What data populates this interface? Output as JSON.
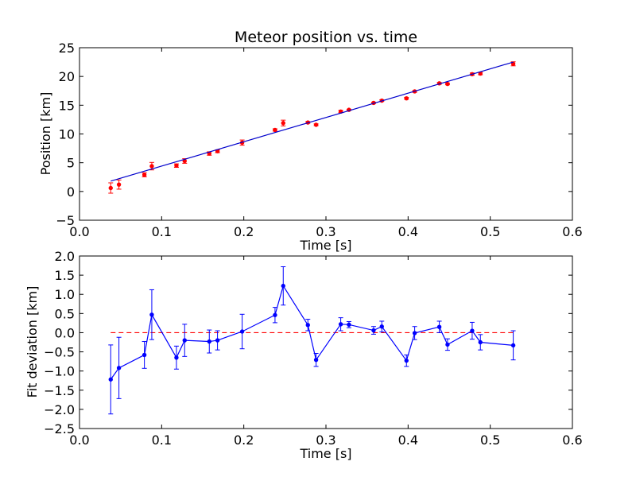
{
  "chart_data": [
    {
      "type": "scatter",
      "title": "Meteor position vs. time",
      "xlabel": "Time [s]",
      "ylabel": "Position [km]",
      "xlim": [
        0.0,
        0.6
      ],
      "ylim": [
        -5,
        25
      ],
      "xticks": [
        0.0,
        0.1,
        0.2,
        0.3,
        0.4,
        0.5,
        0.6
      ],
      "xtick_labels": [
        "0.0",
        "0.1",
        "0.2",
        "0.3",
        "0.4",
        "0.5",
        "0.6"
      ],
      "yticks": [
        -5,
        0,
        5,
        10,
        15,
        20,
        25
      ],
      "ytick_labels": [
        "−5",
        "0",
        "5",
        "10",
        "15",
        "20",
        "25"
      ],
      "grid": false,
      "series": [
        {
          "marker_color": "#ff0000",
          "x": [
            0.038,
            0.048,
            0.079,
            0.088,
            0.118,
            0.128,
            0.158,
            0.168,
            0.198,
            0.238,
            0.248,
            0.278,
            0.288,
            0.318,
            0.328,
            0.358,
            0.368,
            0.398,
            0.408,
            0.438,
            0.448,
            0.478,
            0.488,
            0.528
          ],
          "y": [
            0.6,
            1.2,
            2.9,
            4.4,
            4.5,
            5.3,
            6.6,
            7.0,
            8.5,
            10.7,
            11.9,
            12.0,
            11.6,
            13.9,
            14.2,
            15.4,
            15.8,
            16.2,
            17.4,
            18.8,
            18.7,
            20.4,
            20.5,
            22.2
          ],
          "yerr": [
            0.9,
            0.8,
            0.35,
            0.65,
            0.3,
            0.4,
            0.3,
            0.25,
            0.45,
            0.2,
            0.5,
            0.15,
            0.15,
            0.2,
            0.1,
            0.1,
            0.15,
            0.15,
            0.15,
            0.15,
            0.15,
            0.2,
            0.2,
            0.35
          ]
        },
        {
          "line_color": "#0000cc",
          "x": [
            0.038,
            0.528
          ],
          "y": [
            1.8,
            22.5
          ]
        }
      ]
    },
    {
      "type": "line",
      "xlabel": "Time [s]",
      "ylabel": "Fit deviation [km]",
      "xlim": [
        0.0,
        0.6
      ],
      "ylim": [
        -2.5,
        2.0
      ],
      "xticks": [
        0.0,
        0.1,
        0.2,
        0.3,
        0.4,
        0.5,
        0.6
      ],
      "xtick_labels": [
        "0.0",
        "0.1",
        "0.2",
        "0.3",
        "0.4",
        "0.5",
        "0.6"
      ],
      "yticks": [
        -2.5,
        -2.0,
        -1.5,
        -1.0,
        -0.5,
        0.0,
        0.5,
        1.0,
        1.5,
        2.0
      ],
      "ytick_labels": [
        "−2.5",
        "−2.0",
        "−1.5",
        "−1.0",
        "−0.5",
        "0.0",
        "0.5",
        "1.0",
        "1.5",
        "2.0"
      ],
      "grid": false,
      "reference_line": {
        "y": 0.0,
        "color": "#ff0000",
        "style": "dashed"
      },
      "series": [
        {
          "line_color": "#0000ff",
          "x": [
            0.038,
            0.048,
            0.079,
            0.088,
            0.118,
            0.128,
            0.158,
            0.168,
            0.198,
            0.238,
            0.248,
            0.278,
            0.288,
            0.318,
            0.328,
            0.358,
            0.368,
            0.398,
            0.408,
            0.438,
            0.448,
            0.478,
            0.488,
            0.528
          ],
          "y": [
            -1.22,
            -0.92,
            -0.58,
            0.47,
            -0.65,
            -0.2,
            -0.23,
            -0.2,
            0.03,
            0.46,
            1.22,
            0.2,
            -0.71,
            0.22,
            0.21,
            0.06,
            0.16,
            -0.73,
            -0.01,
            0.15,
            -0.31,
            0.05,
            -0.25,
            -0.33
          ],
          "yerr": [
            0.9,
            0.8,
            0.35,
            0.65,
            0.3,
            0.42,
            0.3,
            0.25,
            0.45,
            0.2,
            0.5,
            0.15,
            0.17,
            0.17,
            0.08,
            0.1,
            0.14,
            0.15,
            0.17,
            0.15,
            0.15,
            0.22,
            0.2,
            0.38
          ]
        }
      ]
    }
  ]
}
